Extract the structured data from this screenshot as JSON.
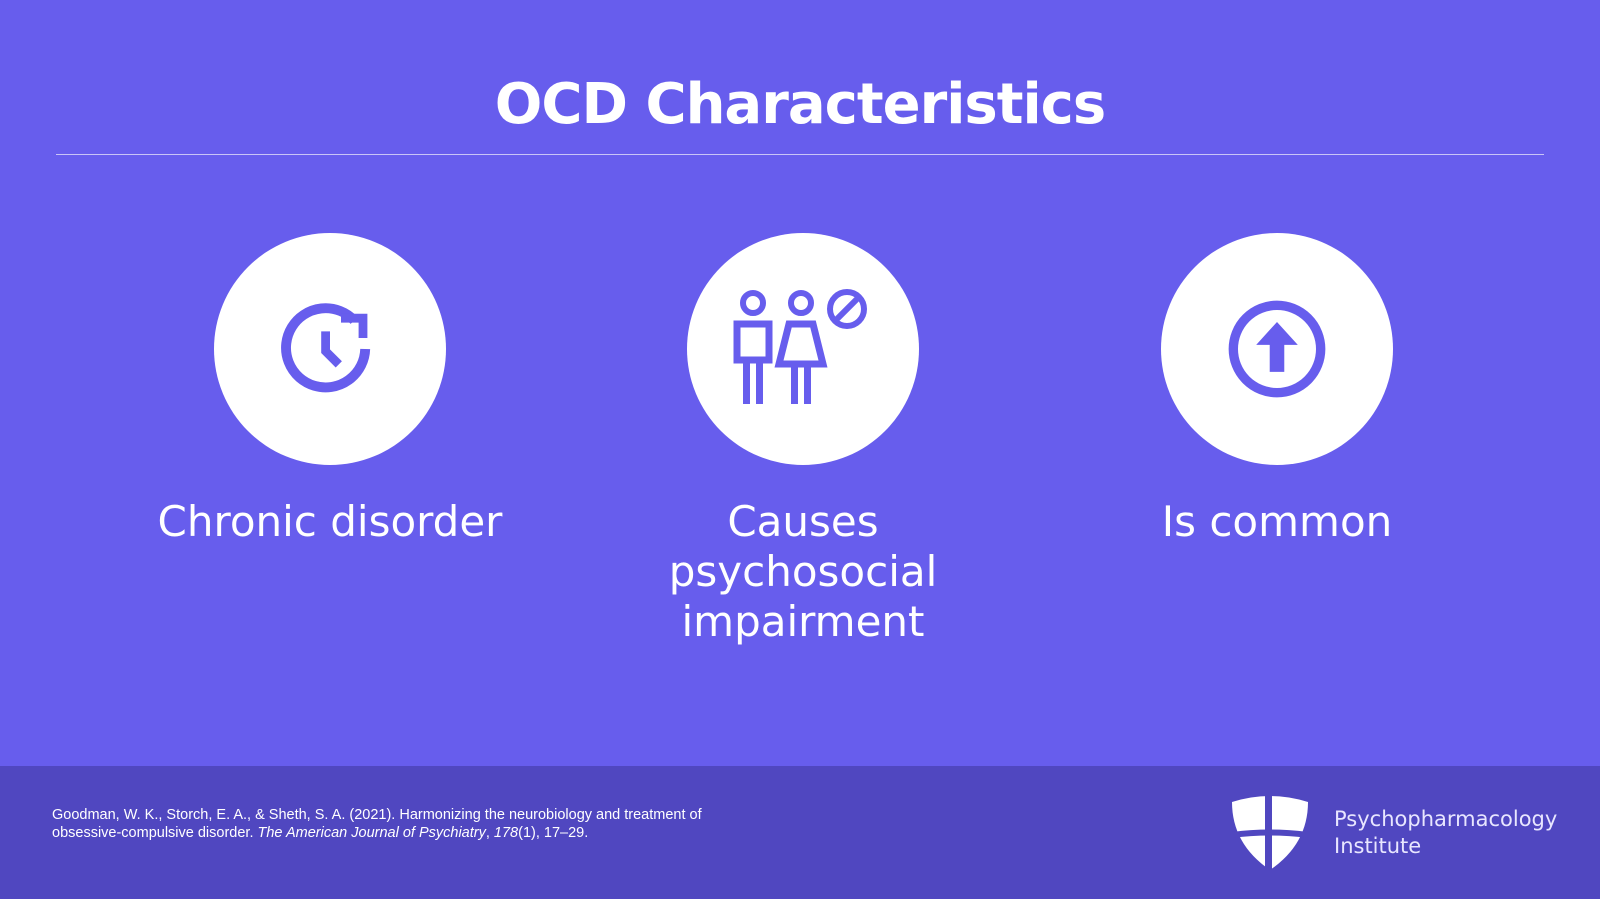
{
  "title": "OCD Characteristics",
  "cards": [
    {
      "label": "Chronic disorder",
      "icon": "clock-refresh-icon"
    },
    {
      "label": "Causes psychosocial impairment",
      "icon": "people-prohibited-icon"
    },
    {
      "label": "Is common",
      "icon": "arrow-up-circle-icon"
    }
  ],
  "footer": {
    "citation_plain": "Goodman, W. K., Storch, E. A., & Sheth, S. A. (2021). Harmonizing the neurobiology and treatment of obsessive-compulsive disorder. ",
    "journal": "The American Journal of Psychiatry",
    "sep": ", ",
    "volume": "178",
    "rest": "(1), 17–29.",
    "logo_line1": "Psychopharmacology",
    "logo_line2": "Institute"
  },
  "colors": {
    "background": "#675ded",
    "footer": "#5047c0"
  }
}
